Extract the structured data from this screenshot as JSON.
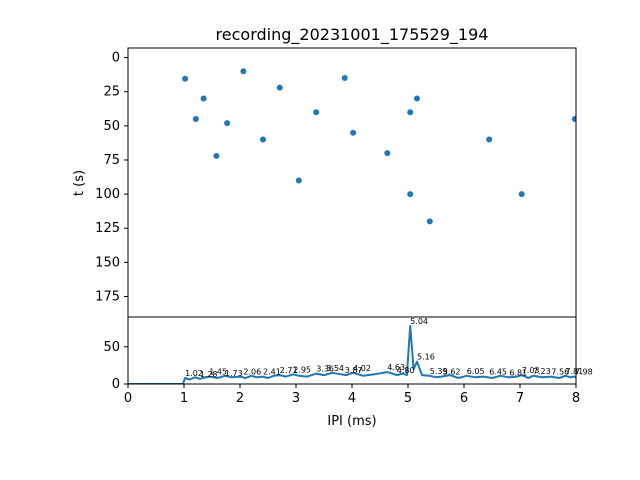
{
  "figure": {
    "title": "recording_20231001_175529_194",
    "series_color": "#1f77b4"
  },
  "chart_data": [
    {
      "type": "scatter",
      "title": "recording_20231001_175529_194",
      "xlabel": "",
      "ylabel": "t (s)",
      "xlim": [
        0,
        8
      ],
      "ylim": [
        190,
        -7
      ],
      "y_inverted": true,
      "yticks": [
        0,
        25,
        50,
        75,
        100,
        125,
        150,
        175
      ],
      "grid": false,
      "x_shared_with_histogram": true,
      "seed": 20231001,
      "points": [
        {
          "x": 1.02,
          "y": 15.5
        },
        {
          "x": 1.21,
          "y": 45.0
        },
        {
          "x": 1.35,
          "y": 30.0
        },
        {
          "x": 1.58,
          "y": 72.0
        },
        {
          "x": 1.77,
          "y": 48.0
        },
        {
          "x": 2.06,
          "y": 10.0
        },
        {
          "x": 2.41,
          "y": 60.0
        },
        {
          "x": 2.71,
          "y": 22.0
        },
        {
          "x": 3.05,
          "y": 90.0
        },
        {
          "x": 3.36,
          "y": 40.0
        },
        {
          "x": 3.87,
          "y": 15.0
        },
        {
          "x": 4.02,
          "y": 55.0
        },
        {
          "x": 4.63,
          "y": 70.0
        },
        {
          "x": 5.04,
          "y": 40.0
        },
        {
          "x": 5.04,
          "y": 100.0
        },
        {
          "x": 5.16,
          "y": 30.0
        },
        {
          "x": 5.39,
          "y": 120.0
        },
        {
          "x": 6.45,
          "y": 60.0
        },
        {
          "x": 7.03,
          "y": 100.0
        },
        {
          "x": 7.98,
          "y": 45.0
        }
      ]
    },
    {
      "type": "area",
      "title": "",
      "xlabel": "IPI (ms)",
      "ylabel": "",
      "xlim": [
        0,
        8
      ],
      "ylim": [
        0,
        90
      ],
      "xticks": [
        0,
        1,
        2,
        3,
        4,
        5,
        6,
        7,
        8
      ],
      "yticks": [
        0,
        50
      ],
      "grid": false,
      "x": [
        0.0,
        0.98,
        1.02,
        1.1,
        1.2,
        1.28,
        1.45,
        1.6,
        1.73,
        1.85,
        2.0,
        2.1,
        2.2,
        2.3,
        2.4,
        2.5,
        2.6,
        2.71,
        2.82,
        2.95,
        3.05,
        3.2,
        3.36,
        3.5,
        3.65,
        3.8,
        3.9,
        4.02,
        4.2,
        4.4,
        4.63,
        4.8,
        4.9,
        4.98,
        5.04,
        5.1,
        5.16,
        5.25,
        5.39,
        5.5,
        5.6,
        5.75,
        5.9,
        6.05,
        6.2,
        6.35,
        6.5,
        6.65,
        6.8,
        6.95,
        7.03,
        7.15,
        7.23,
        7.4,
        7.55,
        7.7,
        7.81,
        7.9,
        7.98,
        8.0
      ],
      "values": [
        0,
        0,
        8,
        6,
        9,
        7,
        10,
        8,
        11,
        9,
        10,
        8,
        11,
        9,
        10,
        8,
        11,
        12,
        10,
        13,
        11,
        10,
        14,
        12,
        15,
        13,
        12,
        15,
        11,
        13,
        16,
        12,
        14,
        12,
        78,
        20,
        30,
        12,
        11,
        9,
        10,
        12,
        8,
        11,
        9,
        10,
        8,
        11,
        9,
        10,
        12,
        8,
        11,
        9,
        10,
        8,
        11,
        9,
        10,
        9
      ],
      "peak_labels": [
        {
          "x": 1.02,
          "y": 8,
          "text": "1.02"
        },
        {
          "x": 1.28,
          "y": 7,
          "text": "1.28"
        },
        {
          "x": 1.45,
          "y": 10,
          "text": "1.45"
        },
        {
          "x": 1.73,
          "y": 8,
          "text": "1.73"
        },
        {
          "x": 2.06,
          "y": 10,
          "text": "2.06"
        },
        {
          "x": 2.41,
          "y": 10,
          "text": "2.41"
        },
        {
          "x": 2.71,
          "y": 12,
          "text": "2.71"
        },
        {
          "x": 2.95,
          "y": 13,
          "text": "2.95"
        },
        {
          "x": 3.36,
          "y": 14,
          "text": "3.36"
        },
        {
          "x": 3.54,
          "y": 15,
          "text": "3.54"
        },
        {
          "x": 3.87,
          "y": 12,
          "text": "3.87"
        },
        {
          "x": 4.02,
          "y": 15,
          "text": "4.02"
        },
        {
          "x": 4.63,
          "y": 16,
          "text": "4.63"
        },
        {
          "x": 4.8,
          "y": 12,
          "text": "4.80"
        },
        {
          "x": 5.04,
          "y": 78,
          "text": "5.04"
        },
        {
          "x": 5.16,
          "y": 30,
          "text": "5.16"
        },
        {
          "x": 5.39,
          "y": 11,
          "text": "5.39"
        },
        {
          "x": 5.62,
          "y": 10,
          "text": "5.62"
        },
        {
          "x": 6.05,
          "y": 11,
          "text": "6.05"
        },
        {
          "x": 6.45,
          "y": 10,
          "text": "6.45"
        },
        {
          "x": 6.81,
          "y": 9,
          "text": "6.81"
        },
        {
          "x": 7.03,
          "y": 12,
          "text": "7.03"
        },
        {
          "x": 7.23,
          "y": 11,
          "text": "7.23"
        },
        {
          "x": 7.56,
          "y": 10,
          "text": "7.56"
        },
        {
          "x": 7.81,
          "y": 11,
          "text": "7.81"
        },
        {
          "x": 7.98,
          "y": 10,
          "text": "7.98"
        }
      ]
    }
  ]
}
